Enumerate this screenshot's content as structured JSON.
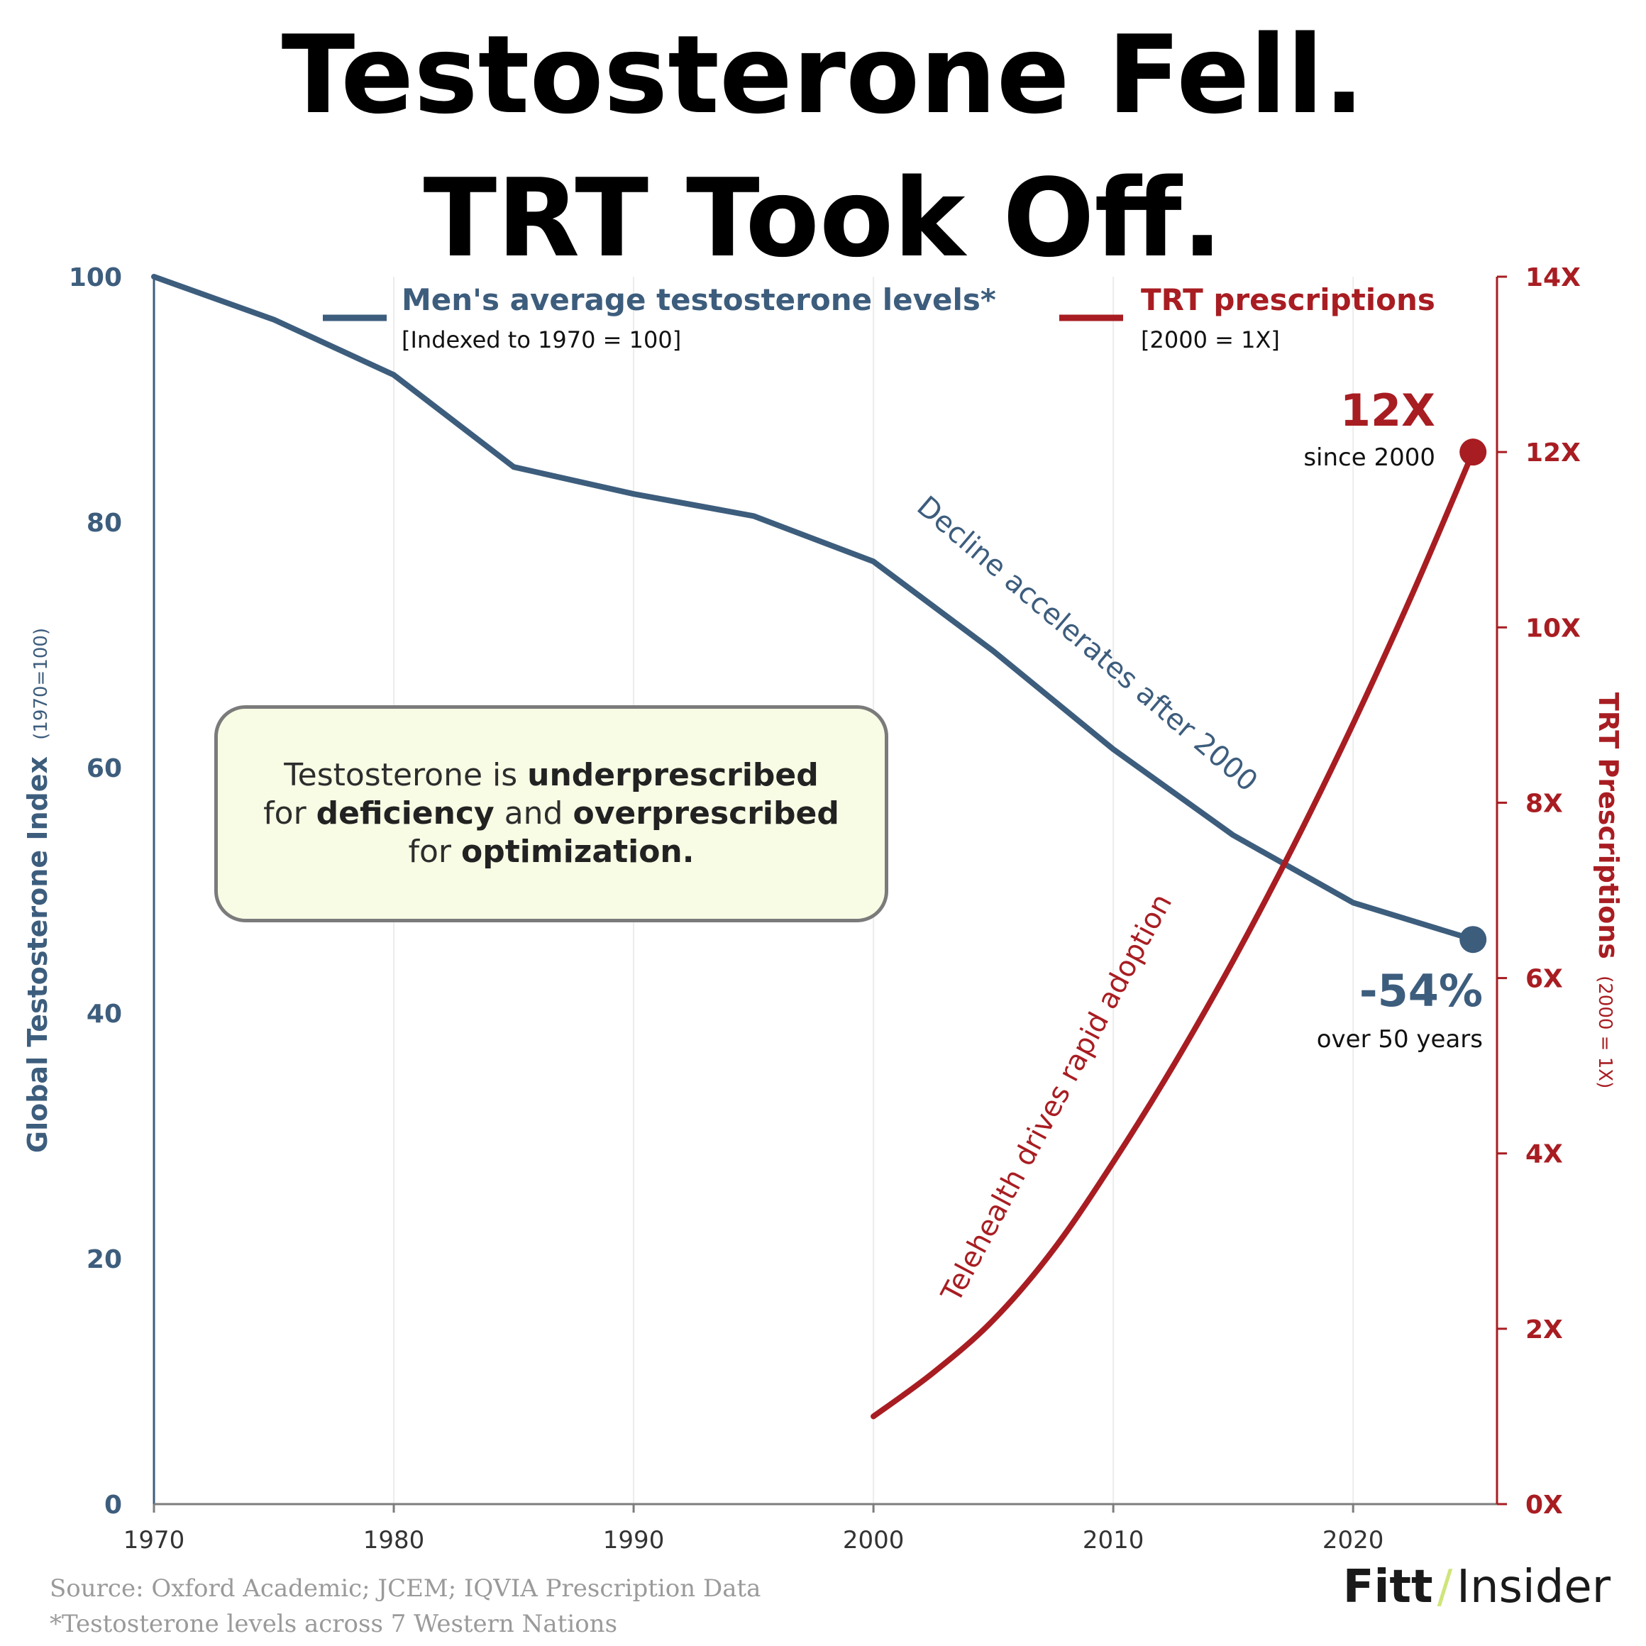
{
  "title_line1": "Testosterone Fell.",
  "title_line2": "TRT Took Off.",
  "colors": {
    "testosterone": "#3d5d7d",
    "trt": "#a81d22",
    "brand_slash": "#cfe57a"
  },
  "chart_data": {
    "type": "line",
    "x_ticks": [
      "1970",
      "1980",
      "1990",
      "2000",
      "2010",
      "2020"
    ],
    "xlim": [
      1970,
      2026
    ],
    "left_axis": {
      "label": "Global Testosterone Index",
      "label_small": "(1970=100)",
      "ticks": [
        "0",
        "20",
        "40",
        "60",
        "80",
        "100"
      ],
      "ylim": [
        0,
        100
      ]
    },
    "right_axis": {
      "label": "TRT Prescriptions",
      "label_small": "(2000 = 1X)",
      "ticks": [
        "0X",
        "2X",
        "4X",
        "6X",
        "8X",
        "10X",
        "12X",
        "14X"
      ],
      "ylim": [
        0,
        14
      ]
    },
    "series": [
      {
        "name": "Men's average testosterone levels*",
        "sub": "[Indexed to 1970 = 100]",
        "axis": "left",
        "x": [
          1970,
          1975,
          1980,
          1985,
          1990,
          1995,
          2000,
          2005,
          2010,
          2015,
          2020,
          2025
        ],
        "y": [
          100,
          96.5,
          92,
          84.5,
          82.3,
          80.5,
          76.8,
          69.5,
          61.5,
          54.5,
          49,
          46
        ]
      },
      {
        "name": "TRT prescriptions",
        "sub": "[2000 = 1X]",
        "axis": "right",
        "x": [
          2000,
          2002.5,
          2005,
          2007.5,
          2010,
          2012.5,
          2015,
          2017.5,
          2020,
          2022.5,
          2025
        ],
        "y": [
          1,
          1.5,
          2.1,
          2.9,
          3.9,
          5.0,
          6.2,
          7.5,
          8.9,
          10.4,
          12
        ]
      }
    ],
    "annotations": {
      "decline": "Decline accelerates after 2000",
      "telehealth": "Telehealth drives rapid adoption",
      "trt_big": "12X",
      "trt_small": "since 2000",
      "t_big": "-54%",
      "t_small": "over 50 years"
    },
    "grid": "vertical-only",
    "legend": "top"
  },
  "note": {
    "p1": "Testosterone is ",
    "b1": "underprescribed",
    "p2": "for ",
    "b2": "deficiency",
    "p3": " and ",
    "b3": "overprescribed",
    "p4": "for ",
    "b4": "optimization."
  },
  "source_line": "Source: Oxford Academic; JCEM; IQVIA Prescription Data",
  "footnote": "*Testosterone levels across 7 Western Nations",
  "brand": {
    "left": "Fitt",
    "slash": "/",
    "right": "Insider"
  }
}
